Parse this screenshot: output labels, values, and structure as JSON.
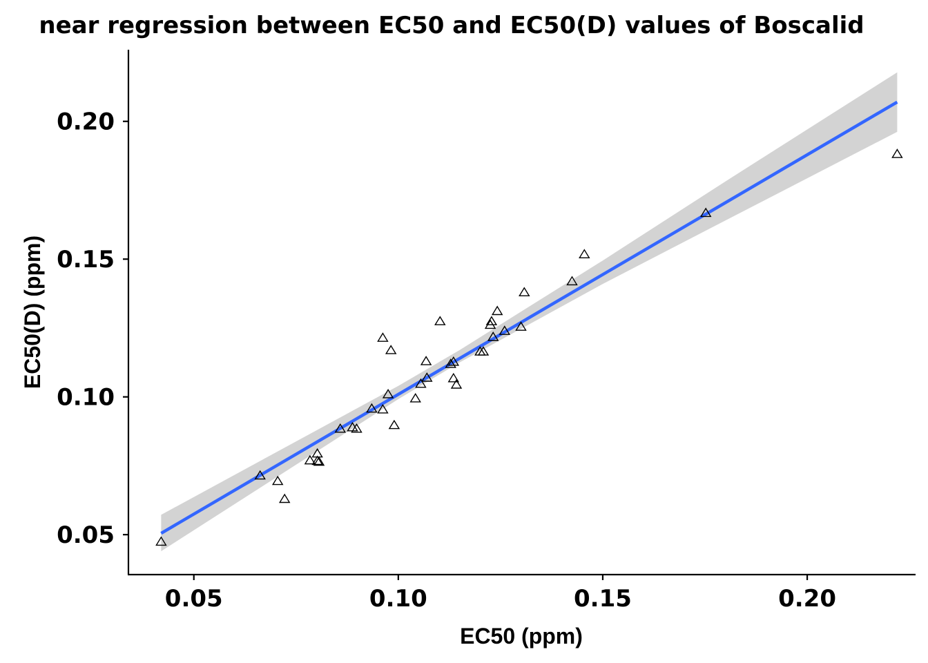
{
  "chart_data": {
    "type": "scatter",
    "title": "near regression between EC50 and EC50(D) values of Boscalid",
    "xlabel": "EC50 (ppm)",
    "ylabel": "EC50(D) (ppm)",
    "xlim": [
      0.034,
      0.2265
    ],
    "ylim": [
      0.0355,
      0.226
    ],
    "x_ticks": [
      0.05,
      0.1,
      0.15,
      0.2
    ],
    "y_ticks": [
      0.05,
      0.1,
      0.15,
      0.2
    ],
    "x_tick_labels": [
      "0.05",
      "0.10",
      "0.15",
      "0.20"
    ],
    "y_tick_labels": [
      "0.05",
      "0.10",
      "0.15",
      "0.20"
    ],
    "grid": false,
    "marker": "open-triangle",
    "colors": {
      "line": "#3366FF",
      "ribbon": "#d3d3d3",
      "points": "#000000",
      "axes": "#000000"
    },
    "points": [
      {
        "x": 0.042,
        "y": 0.0475
      },
      {
        "x": 0.0662,
        "y": 0.0715
      },
      {
        "x": 0.0705,
        "y": 0.0695
      },
      {
        "x": 0.0722,
        "y": 0.063
      },
      {
        "x": 0.0784,
        "y": 0.077
      },
      {
        "x": 0.0802,
        "y": 0.0795
      },
      {
        "x": 0.0802,
        "y": 0.0768
      },
      {
        "x": 0.0806,
        "y": 0.0765
      },
      {
        "x": 0.0858,
        "y": 0.0885
      },
      {
        "x": 0.0888,
        "y": 0.089
      },
      {
        "x": 0.0898,
        "y": 0.0885
      },
      {
        "x": 0.0935,
        "y": 0.0958
      },
      {
        "x": 0.0962,
        "y": 0.1215
      },
      {
        "x": 0.0962,
        "y": 0.0955
      },
      {
        "x": 0.0975,
        "y": 0.101
      },
      {
        "x": 0.0982,
        "y": 0.117
      },
      {
        "x": 0.099,
        "y": 0.0898
      },
      {
        "x": 0.1042,
        "y": 0.0995
      },
      {
        "x": 0.1055,
        "y": 0.1048
      },
      {
        "x": 0.1068,
        "y": 0.113
      },
      {
        "x": 0.107,
        "y": 0.107
      },
      {
        "x": 0.1102,
        "y": 0.1275
      },
      {
        "x": 0.1128,
        "y": 0.112
      },
      {
        "x": 0.1135,
        "y": 0.1128
      },
      {
        "x": 0.1135,
        "y": 0.1068
      },
      {
        "x": 0.1142,
        "y": 0.1045
      },
      {
        "x": 0.12,
        "y": 0.1165
      },
      {
        "x": 0.1208,
        "y": 0.1165
      },
      {
        "x": 0.1225,
        "y": 0.1262
      },
      {
        "x": 0.1228,
        "y": 0.1275
      },
      {
        "x": 0.1232,
        "y": 0.1218
      },
      {
        "x": 0.1242,
        "y": 0.1312
      },
      {
        "x": 0.126,
        "y": 0.124
      },
      {
        "x": 0.13,
        "y": 0.1255
      },
      {
        "x": 0.1308,
        "y": 0.138
      },
      {
        "x": 0.1425,
        "y": 0.142
      },
      {
        "x": 0.1455,
        "y": 0.1518
      },
      {
        "x": 0.1752,
        "y": 0.1668
      },
      {
        "x": 0.222,
        "y": 0.1882
      }
    ],
    "fit_line": [
      {
        "x": 0.042,
        "y": 0.0505
      },
      {
        "x": 0.222,
        "y": 0.207
      }
    ],
    "ribbon": [
      {
        "x": 0.042,
        "lower": 0.044,
        "upper": 0.0572
      },
      {
        "x": 0.1,
        "lower": 0.0992,
        "upper": 0.104
      },
      {
        "x": 0.115,
        "lower": 0.1125,
        "upper": 0.117
      },
      {
        "x": 0.15,
        "lower": 0.141,
        "upper": 0.1495
      },
      {
        "x": 0.18,
        "lower": 0.164,
        "upper": 0.1782
      },
      {
        "x": 0.222,
        "lower": 0.1962,
        "upper": 0.2178
      }
    ]
  }
}
